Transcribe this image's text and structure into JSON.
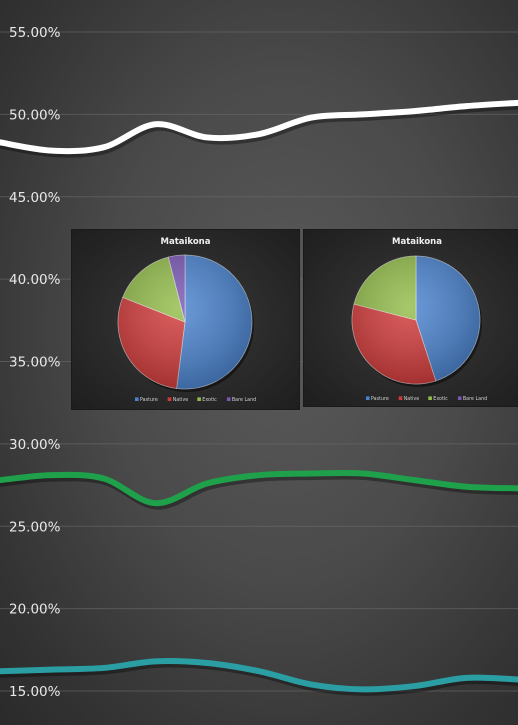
{
  "chart_data": [
    {
      "type": "line",
      "y_ticks": [
        "55.00%",
        "50.00%",
        "45.00%",
        "40.00%",
        "35.00%",
        "30.00%",
        "25.00%",
        "20.00%",
        "15.00%"
      ],
      "ylim": [
        15,
        55
      ],
      "grid": true,
      "x": [
        0,
        1,
        2,
        3,
        4,
        5,
        6,
        7,
        8,
        9,
        10
      ],
      "series": [
        {
          "color": "#ffffff",
          "values": [
            48.3,
            47.8,
            48.0,
            49.4,
            48.6,
            48.8,
            49.8,
            50.0,
            50.2,
            50.5,
            50.7
          ]
        },
        {
          "color": "#1fa04a",
          "values": [
            27.8,
            28.1,
            27.9,
            26.4,
            27.6,
            28.1,
            28.2,
            28.2,
            27.8,
            27.4,
            27.3
          ]
        },
        {
          "color": "#2a9ea2",
          "values": [
            16.2,
            16.3,
            16.4,
            16.8,
            16.7,
            16.2,
            15.4,
            15.1,
            15.3,
            15.8,
            15.7
          ]
        }
      ]
    },
    {
      "type": "pie",
      "title": "Mataikona",
      "legend_placement": "bottom",
      "labels": [
        "Pasture",
        "Native",
        "Exotic",
        "Bare Land"
      ],
      "colors": [
        "#4a83cf",
        "#d23a3a",
        "#93bd4a",
        "#7b57b5"
      ],
      "values": [
        52,
        29,
        15,
        4
      ]
    },
    {
      "type": "pie",
      "title": "Mataikona",
      "legend_placement": "bottom",
      "labels": [
        "Pasture",
        "Native",
        "Exotic",
        "Bare Land"
      ],
      "colors": [
        "#4a83cf",
        "#d23a3a",
        "#93bd4a",
        "#7b57b5"
      ],
      "values": [
        45,
        34,
        21,
        0
      ]
    }
  ]
}
